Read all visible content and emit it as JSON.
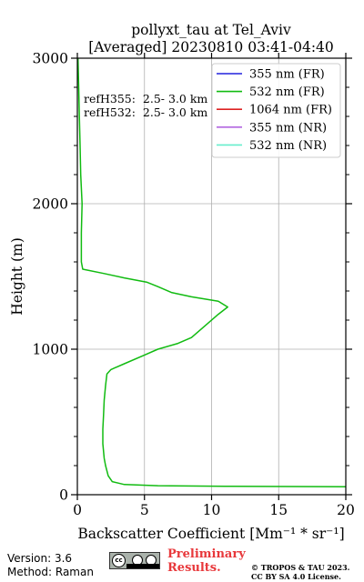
{
  "chart_data": {
    "type": "line",
    "title": "pollyxt_tau at Tel_Aviv",
    "subtitle": "[Averaged] 20230810 03:41-04:40",
    "xlabel": "Backscatter Coefficient [Mm⁻¹ * sr⁻¹]",
    "ylabel": "Height (m)",
    "xlim": [
      0,
      20
    ],
    "ylim": [
      0,
      3000
    ],
    "xticks": [
      "0",
      "5",
      "10",
      "15",
      "20"
    ],
    "yticks": [
      "0",
      "1000",
      "2000",
      "3000"
    ],
    "grid": true,
    "legend_position": "top-right",
    "annotations": [
      "refH355:  2.5- 3.0 km",
      "refH532:  2.5- 3.0 km"
    ],
    "series": [
      {
        "name": "355 nm (FR)",
        "color": "#2222dd",
        "points": []
      },
      {
        "name": "532 nm (FR)",
        "color": "#11bb11",
        "points": [
          [
            20,
            55
          ],
          [
            11,
            58
          ],
          [
            6,
            62
          ],
          [
            3.5,
            70
          ],
          [
            2.6,
            90
          ],
          [
            2.3,
            130
          ],
          [
            2.1,
            200
          ],
          [
            2.0,
            250
          ],
          [
            1.9,
            350
          ],
          [
            1.9,
            450
          ],
          [
            1.95,
            550
          ],
          [
            2.0,
            650
          ],
          [
            2.1,
            750
          ],
          [
            2.2,
            830
          ],
          [
            2.5,
            860
          ],
          [
            3.5,
            900
          ],
          [
            5,
            960
          ],
          [
            6,
            1000
          ],
          [
            7.5,
            1040
          ],
          [
            8.5,
            1080
          ],
          [
            9.5,
            1160
          ],
          [
            10.5,
            1240
          ],
          [
            11.2,
            1290
          ],
          [
            10.5,
            1330
          ],
          [
            8.5,
            1360
          ],
          [
            7,
            1390
          ],
          [
            6,
            1430
          ],
          [
            5.2,
            1460
          ],
          [
            3.5,
            1490
          ],
          [
            2.0,
            1520
          ],
          [
            0.4,
            1550
          ],
          [
            0.3,
            1600
          ],
          [
            0.3,
            1800
          ],
          [
            0.35,
            2000
          ],
          [
            0.25,
            2200
          ],
          [
            0.2,
            2400
          ],
          [
            0.15,
            2600
          ],
          [
            0.1,
            2800
          ],
          [
            0.05,
            3000
          ]
        ]
      },
      {
        "name": "1064 nm (FR)",
        "color": "#dd2222",
        "points": []
      },
      {
        "name": "355 nm (NR)",
        "color": "#b266e0",
        "points": []
      },
      {
        "name": "532 nm (NR)",
        "color": "#66eecc",
        "points": []
      }
    ]
  },
  "footer": {
    "version": "Version: 3.6",
    "method": "Method: Raman",
    "preliminary": "Preliminary",
    "results": "Results.",
    "copyright_line1": "© TROPOS & TAU 2023.",
    "copyright_line2": "CC BY SA 4.0 License."
  },
  "license_badge": {
    "logo_text": "cc"
  }
}
